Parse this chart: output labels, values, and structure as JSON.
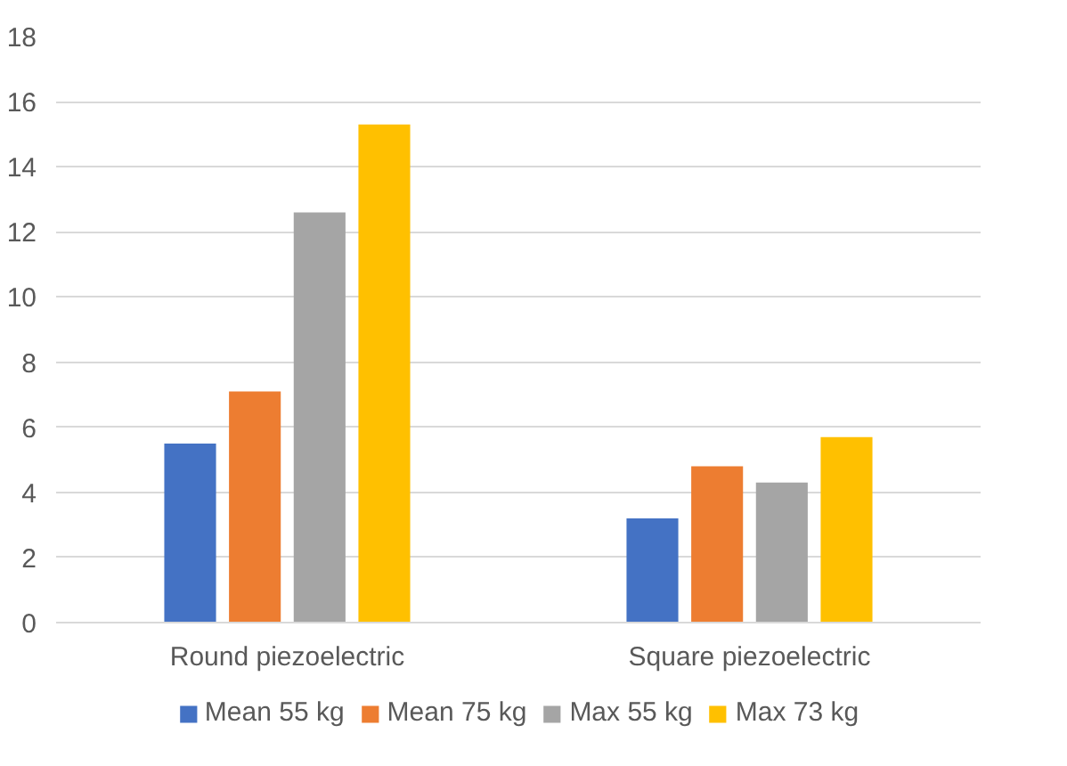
{
  "chart_data": {
    "type": "bar",
    "categories": [
      "Round piezoelectric",
      "Square piezoelectric"
    ],
    "series": [
      {
        "name": "Mean 55 kg",
        "color": "#4472c4",
        "values": [
          5.5,
          3.2
        ]
      },
      {
        "name": "Mean 75 kg",
        "color": "#ed7d31",
        "values": [
          7.1,
          4.8
        ]
      },
      {
        "name": "Max 55 kg",
        "color": "#a5a5a5",
        "values": [
          12.6,
          4.3
        ]
      },
      {
        "name": "Max 73 kg",
        "color": "#ffc000",
        "values": [
          15.3,
          5.7
        ]
      }
    ],
    "ylim": [
      0,
      18
    ],
    "yticks": [
      0,
      2,
      4,
      6,
      8,
      10,
      12,
      14,
      16,
      18
    ],
    "grid": "y",
    "legend": "bottom"
  }
}
